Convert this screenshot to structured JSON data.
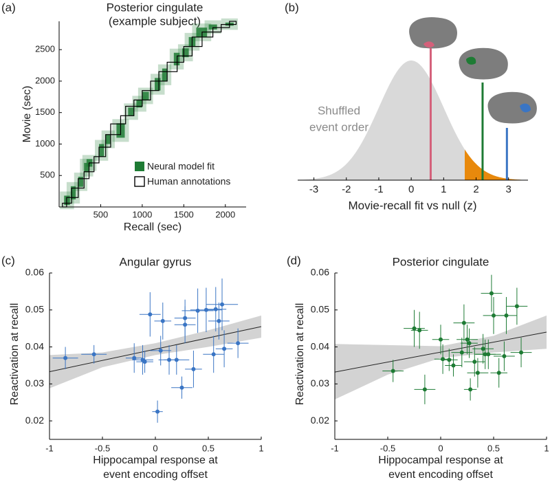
{
  "chart_data": [
    {
      "type": "event-alignment",
      "panel_label": "(a)",
      "title": [
        "Posterior cingulate",
        "(example subject)"
      ],
      "xlabel": "Recall (sec)",
      "ylabel": "Movie (sec)",
      "xlim": [
        0,
        2250
      ],
      "ylim": [
        0,
        2950
      ],
      "xticks": [
        500,
        1000,
        1500,
        2000
      ],
      "yticks": [
        500,
        1000,
        1500,
        2000,
        2500
      ],
      "model_fit": {
        "name": "Neural model fit",
        "color": "#1e7b34",
        "boxes": [
          [
            60,
            130,
            30,
            180
          ],
          [
            140,
            200,
            120,
            330
          ],
          [
            230,
            290,
            320,
            480
          ],
          [
            300,
            360,
            550,
            700
          ],
          [
            330,
            400,
            640,
            760
          ],
          [
            480,
            540,
            800,
            1000
          ],
          [
            560,
            620,
            1000,
            1150
          ],
          [
            690,
            790,
            1100,
            1330
          ],
          [
            830,
            900,
            1450,
            1580
          ],
          [
            930,
            1000,
            1580,
            1700
          ],
          [
            1000,
            1080,
            1700,
            1830
          ],
          [
            1150,
            1220,
            1850,
            2050
          ],
          [
            1240,
            1300,
            2000,
            2200
          ],
          [
            1380,
            1450,
            2250,
            2450
          ],
          [
            1480,
            1560,
            2380,
            2520
          ],
          [
            1560,
            1640,
            2550,
            2700
          ],
          [
            1650,
            1780,
            2700,
            2850
          ],
          [
            1800,
            1900,
            2820,
            2900
          ],
          [
            2000,
            2100,
            2880,
            2930
          ]
        ]
      },
      "human_annotations": {
        "name": "Human annotations",
        "color": "#000000",
        "boxes": [
          [
            40,
            90,
            0,
            60
          ],
          [
            90,
            150,
            60,
            150
          ],
          [
            150,
            230,
            150,
            300
          ],
          [
            230,
            300,
            300,
            450
          ],
          [
            300,
            360,
            450,
            560
          ],
          [
            360,
            420,
            560,
            700
          ],
          [
            420,
            480,
            700,
            800
          ],
          [
            480,
            560,
            800,
            950
          ],
          [
            560,
            620,
            950,
            1150
          ],
          [
            620,
            740,
            1150,
            1320
          ],
          [
            740,
            800,
            1320,
            1450
          ],
          [
            800,
            900,
            1450,
            1600
          ],
          [
            900,
            1000,
            1600,
            1700
          ],
          [
            1000,
            1100,
            1700,
            1850
          ],
          [
            1100,
            1200,
            1850,
            2000
          ],
          [
            1200,
            1300,
            2000,
            2150
          ],
          [
            1300,
            1420,
            2150,
            2300
          ],
          [
            1420,
            1500,
            2300,
            2400
          ],
          [
            1500,
            1600,
            2400,
            2550
          ],
          [
            1600,
            1720,
            2550,
            2700
          ],
          [
            1720,
            1850,
            2700,
            2780
          ],
          [
            1850,
            1950,
            2780,
            2850
          ],
          [
            1950,
            2050,
            2850,
            2900
          ],
          [
            2050,
            2130,
            2900,
            2950
          ]
        ]
      }
    },
    {
      "type": "density",
      "panel_label": "(b)",
      "xlabel": "Movie-recall fit vs null (z)",
      "annotation": [
        "Shuffled",
        "event order"
      ],
      "xlim": [
        -3.5,
        3.6
      ],
      "xticks": [
        -3,
        -2,
        -1,
        0,
        1,
        2,
        3
      ],
      "color": "#d9d9d9",
      "threshold": 1.65,
      "tail_color": "#e8890c",
      "values": [
        0.6,
        2.2,
        2.95
      ],
      "colors": [
        "#d4607a",
        "#1e7b34",
        "#3a75c4"
      ]
    },
    {
      "type": "scatter",
      "panel_label": "(c)",
      "title": "Angular gyrus",
      "xlabel": [
        "Hippocampal response at",
        "event encoding offset"
      ],
      "ylabel": "Reactivation at recall",
      "xlim": [
        -1,
        1
      ],
      "ylim": [
        0.015,
        0.06
      ],
      "xticks": [
        -1,
        -0.5,
        0,
        0.5,
        1
      ],
      "yticks": [
        0.02,
        0.03,
        0.04,
        0.05,
        0.06
      ],
      "color": "#3a75c4",
      "x": [
        -0.85,
        -0.58,
        -0.2,
        -0.12,
        -0.1,
        -0.05,
        0.02,
        0.05,
        0.07,
        0.13,
        0.2,
        0.25,
        0.28,
        0.28,
        0.36,
        0.4,
        0.48,
        0.55,
        0.57,
        0.6,
        0.63,
        0.65,
        0.78
      ],
      "values": [
        0.037,
        0.038,
        0.037,
        0.0365,
        0.036,
        0.0488,
        0.0225,
        0.039,
        0.047,
        0.0365,
        0.0365,
        0.029,
        0.046,
        0.0478,
        0.034,
        0.0498,
        0.05,
        0.038,
        0.0502,
        0.047,
        0.0515,
        0.0395,
        0.041
      ],
      "x_error": [
        0.12,
        0.12,
        0.08,
        0.1,
        0.08,
        0.1,
        0.05,
        0.1,
        0.08,
        0.1,
        0.12,
        0.1,
        0.1,
        0.1,
        0.08,
        0.15,
        0.15,
        0.1,
        0.1,
        0.1,
        0.15,
        0.08,
        0.1
      ],
      "y_error": [
        0.003,
        0.0025,
        0.004,
        0.004,
        0.003,
        0.006,
        0.003,
        0.004,
        0.005,
        0.004,
        0.004,
        0.003,
        0.005,
        0.005,
        0.005,
        0.006,
        0.006,
        0.005,
        0.006,
        0.005,
        0.007,
        0.005,
        0.004
      ],
      "fit": {
        "x": [
          -1,
          1
        ],
        "y": [
          0.0333,
          0.0455
        ]
      },
      "ci": {
        "x": [
          -1,
          -0.5,
          0,
          0.5,
          1
        ],
        "lower": [
          0.0288,
          0.0345,
          0.0378,
          0.04,
          0.0425
        ],
        "upper": [
          0.0378,
          0.0385,
          0.041,
          0.0445,
          0.0485
        ]
      }
    },
    {
      "type": "scatter",
      "panel_label": "(d)",
      "title": "Posterior cingulate",
      "xlabel": [
        "Hippocampal response at",
        "event encoding offset"
      ],
      "ylabel": "Reactivation at recall",
      "xlim": [
        -1,
        1
      ],
      "ylim": [
        0.015,
        0.06
      ],
      "xticks": [
        -1,
        -0.5,
        0,
        0.5,
        1
      ],
      "yticks": [
        0.02,
        0.03,
        0.04,
        0.05,
        0.06
      ],
      "color": "#1e7b34",
      "x": [
        -0.45,
        -0.25,
        -0.2,
        -0.15,
        0.0,
        0.02,
        0.08,
        0.12,
        0.2,
        0.22,
        0.25,
        0.28,
        0.27,
        0.32,
        0.35,
        0.4,
        0.42,
        0.45,
        0.48,
        0.5,
        0.55,
        0.6,
        0.62,
        0.72,
        0.76
      ],
      "values": [
        0.0335,
        0.045,
        0.0445,
        0.0285,
        0.042,
        0.0367,
        0.0365,
        0.035,
        0.0385,
        0.0465,
        0.042,
        0.0285,
        0.041,
        0.036,
        0.033,
        0.0395,
        0.038,
        0.038,
        0.0545,
        0.0485,
        0.033,
        0.0375,
        0.0485,
        0.051,
        0.0385
      ],
      "x_error": [
        0.1,
        0.1,
        0.08,
        0.1,
        0.08,
        0.08,
        0.08,
        0.08,
        0.1,
        0.1,
        0.1,
        0.06,
        0.08,
        0.1,
        0.1,
        0.1,
        0.1,
        0.12,
        0.1,
        0.1,
        0.08,
        0.1,
        0.1,
        0.1,
        0.1
      ],
      "y_error": [
        0.003,
        0.005,
        0.005,
        0.004,
        0.004,
        0.004,
        0.003,
        0.003,
        0.004,
        0.005,
        0.004,
        0.003,
        0.004,
        0.004,
        0.004,
        0.004,
        0.004,
        0.004,
        0.005,
        0.005,
        0.004,
        0.004,
        0.005,
        0.005,
        0.004
      ],
      "fit": {
        "x": [
          -1,
          1
        ],
        "y": [
          0.0332,
          0.044
        ]
      },
      "ci": {
        "x": [
          -1,
          -0.5,
          0,
          0.5,
          1
        ],
        "lower": [
          0.0258,
          0.0325,
          0.037,
          0.0385,
          0.0395
        ],
        "upper": [
          0.0408,
          0.0405,
          0.0402,
          0.043,
          0.0485
        ]
      }
    }
  ]
}
